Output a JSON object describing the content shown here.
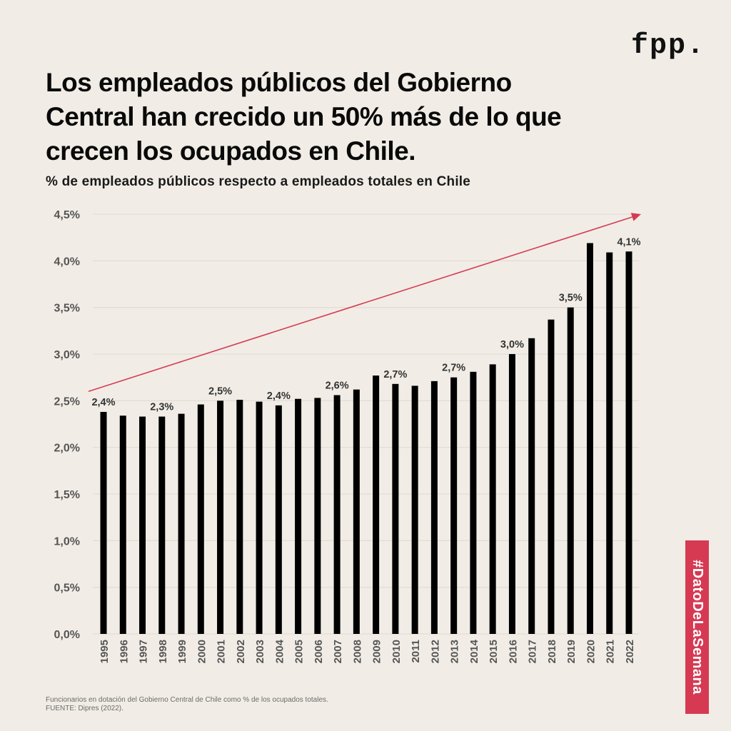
{
  "logo": "fpp.",
  "title": "Los empleados públicos del Gobierno Central han crecido un 50% más de lo que crecen los ocupados en Chile.",
  "subtitle": "% de empleados públicos respecto a empleados totales en Chile",
  "footnote": {
    "line1": "Funcionarios en dotación del Gobierno Central de Chile como % de los ocupados totales.",
    "line2": "FUENTE: Dipres (2022)."
  },
  "badge": "#DatoDeLaSemana",
  "colors": {
    "background": "#f1ede6",
    "bar": "#000000",
    "accent": "#d63a53",
    "grid": "#e2ddd5",
    "label": "#333333",
    "axis_label": "#555555"
  },
  "chart_data": {
    "type": "bar",
    "title": "% de empleados públicos respecto a empleados totales en Chile",
    "xlabel": "",
    "ylabel": "",
    "ylim": [
      0,
      4.5
    ],
    "grid": true,
    "categories": [
      "1995",
      "1996",
      "1997",
      "1998",
      "1999",
      "2000",
      "2001",
      "2002",
      "2003",
      "2004",
      "2005",
      "2006",
      "2007",
      "2008",
      "2009",
      "2010",
      "2011",
      "2012",
      "2013",
      "2014",
      "2015",
      "2016",
      "2017",
      "2018",
      "2019",
      "2020",
      "2021",
      "2022"
    ],
    "values": [
      2.38,
      2.34,
      2.33,
      2.33,
      2.36,
      2.46,
      2.5,
      2.51,
      2.49,
      2.45,
      2.52,
      2.53,
      2.56,
      2.62,
      2.77,
      2.68,
      2.66,
      2.71,
      2.75,
      2.81,
      2.89,
      3.0,
      3.17,
      3.37,
      3.5,
      4.19,
      4.09,
      4.1
    ],
    "y_ticks": [
      0,
      0.5,
      1.0,
      1.5,
      2.0,
      2.5,
      3.0,
      3.5,
      4.0,
      4.5
    ],
    "y_tick_labels": [
      "0,0%",
      "0,5%",
      "1,0%",
      "1,5%",
      "2,0%",
      "2,5%",
      "3,0%",
      "3,5%",
      "4,0%",
      "4,5%"
    ],
    "data_labels": [
      {
        "category": "1995",
        "text": "2,4%"
      },
      {
        "category": "1998",
        "text": "2,3%"
      },
      {
        "category": "2001",
        "text": "2,5%"
      },
      {
        "category": "2004",
        "text": "2,4%"
      },
      {
        "category": "2007",
        "text": "2,6%"
      },
      {
        "category": "2010",
        "text": "2,7%"
      },
      {
        "category": "2013",
        "text": "2,7%"
      },
      {
        "category": "2016",
        "text": "3,0%"
      },
      {
        "category": "2019",
        "text": "3,5%"
      },
      {
        "category": "2022",
        "text": "4,1%"
      }
    ],
    "trend_arrow": {
      "from_value": 2.6,
      "to_value": 4.5,
      "direction": "up-right"
    }
  }
}
